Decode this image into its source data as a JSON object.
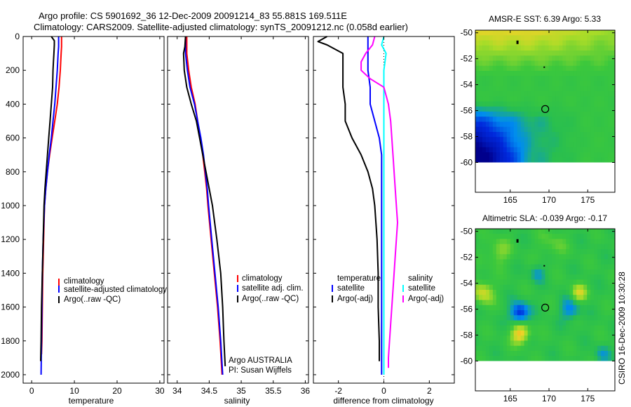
{
  "header": {
    "line1": "Argo profile: CS 5901692_36 12-Dec-2009 20091214_83 55.881S 169.511E",
    "line2": "Climatology: CARS2009. Satellite-adjusted climatology: synTS_20091212.nc (0.058d earlier)"
  },
  "stamp": "CSIRO 16-Dec-2009 10:30:28",
  "float_info": {
    "line1": "Argo AUSTRALIA",
    "line2": "PI: Susan Wijffels"
  },
  "colors": {
    "red": "#ff0000",
    "blue": "#0000ff",
    "black": "#000000",
    "cyan": "#00ffff",
    "magenta": "#ff00ff"
  },
  "chart_data": [
    {
      "id": "temp",
      "type": "line",
      "xlabel": "temperature",
      "xlim": [
        -2,
        31
      ],
      "ylim": [
        2050,
        0
      ],
      "xticks": [
        0,
        10,
        20,
        30
      ],
      "yticks": [
        0,
        200,
        400,
        600,
        800,
        1000,
        1200,
        1400,
        1600,
        1800,
        2000
      ],
      "legend": [
        "climatology",
        "satellite-adjusted climatology",
        "Argo(..raw -QC)"
      ],
      "series": [
        {
          "name": "climatology",
          "color": "#ff0000",
          "points": [
            [
              7.0,
              0
            ],
            [
              7.0,
              60
            ],
            [
              6.9,
              100
            ],
            [
              6.7,
              200
            ],
            [
              6.4,
              300
            ],
            [
              6.0,
              400
            ],
            [
              5.4,
              500
            ],
            [
              4.8,
              600
            ],
            [
              4.2,
              700
            ],
            [
              3.7,
              800
            ],
            [
              3.3,
              900
            ],
            [
              3.0,
              1000
            ],
            [
              2.8,
              1200
            ],
            [
              2.6,
              1400
            ],
            [
              2.5,
              1600
            ],
            [
              2.4,
              1800
            ],
            [
              2.3,
              1880
            ]
          ]
        },
        {
          "name": "satellite-adjusted climatology",
          "color": "#0000ff",
          "points": [
            [
              6.3,
              0
            ],
            [
              6.3,
              60
            ],
            [
              6.2,
              100
            ],
            [
              6.0,
              200
            ],
            [
              5.7,
              300
            ],
            [
              5.4,
              400
            ],
            [
              5.0,
              500
            ],
            [
              4.6,
              600
            ],
            [
              4.1,
              700
            ],
            [
              3.7,
              800
            ],
            [
              3.3,
              900
            ],
            [
              3.0,
              1000
            ],
            [
              2.7,
              1200
            ],
            [
              2.5,
              1400
            ],
            [
              2.4,
              1600
            ],
            [
              2.3,
              1800
            ],
            [
              2.2,
              2000
            ]
          ]
        },
        {
          "name": "Argo(..raw -QC)",
          "color": "#000000",
          "points": [
            [
              4.6,
              0
            ],
            [
              5.3,
              25
            ],
            [
              5.3,
              50
            ],
            [
              5.2,
              100
            ],
            [
              5.1,
              150
            ],
            [
              5.0,
              200
            ],
            [
              4.9,
              300
            ],
            [
              4.6,
              400
            ],
            [
              4.3,
              500
            ],
            [
              4.0,
              600
            ],
            [
              3.7,
              700
            ],
            [
              3.4,
              800
            ],
            [
              3.1,
              900
            ],
            [
              2.9,
              1000
            ],
            [
              2.7,
              1200
            ],
            [
              2.5,
              1400
            ],
            [
              2.3,
              1600
            ],
            [
              2.2,
              1800
            ],
            [
              2.1,
              1920
            ]
          ]
        }
      ]
    },
    {
      "id": "sal",
      "type": "line",
      "xlabel": "salinity",
      "xlim": [
        33.85,
        36.05
      ],
      "ylim": [
        2050,
        0
      ],
      "xticks": [
        34,
        34.5,
        35,
        35.5,
        36
      ],
      "yticks": [
        0,
        200,
        400,
        600,
        800,
        1000,
        1200,
        1400,
        1600,
        1800,
        2000
      ],
      "legend": [
        "climatology",
        "satellite adj. clim.",
        "Argo(..raw -QC)"
      ],
      "series": [
        {
          "name": "climatology",
          "color": "#ff0000",
          "points": [
            [
              34.15,
              0
            ],
            [
              34.15,
              100
            ],
            [
              34.18,
              200
            ],
            [
              34.22,
              300
            ],
            [
              34.28,
              400
            ],
            [
              34.32,
              500
            ],
            [
              34.36,
              600
            ],
            [
              34.4,
              700
            ],
            [
              34.43,
              800
            ],
            [
              34.46,
              900
            ],
            [
              34.48,
              1000
            ],
            [
              34.53,
              1200
            ],
            [
              34.58,
              1400
            ],
            [
              34.63,
              1600
            ],
            [
              34.67,
              1800
            ],
            [
              34.7,
              2000
            ]
          ]
        },
        {
          "name": "satellite adj. clim.",
          "color": "#0000ff",
          "points": [
            [
              34.13,
              0
            ],
            [
              34.13,
              100
            ],
            [
              34.16,
              200
            ],
            [
              34.2,
              300
            ],
            [
              34.27,
              400
            ],
            [
              34.32,
              500
            ],
            [
              34.37,
              600
            ],
            [
              34.41,
              700
            ],
            [
              34.44,
              800
            ],
            [
              34.47,
              900
            ],
            [
              34.49,
              1000
            ],
            [
              34.54,
              1200
            ],
            [
              34.59,
              1400
            ],
            [
              34.64,
              1600
            ],
            [
              34.68,
              1800
            ],
            [
              34.71,
              2000
            ]
          ]
        },
        {
          "name": "Argo(..raw -QC)",
          "color": "#000000",
          "points": [
            [
              34.13,
              0
            ],
            [
              34.12,
              60
            ],
            [
              34.1,
              100
            ],
            [
              34.11,
              200
            ],
            [
              34.15,
              300
            ],
            [
              34.22,
              400
            ],
            [
              34.3,
              500
            ],
            [
              34.35,
              600
            ],
            [
              34.4,
              700
            ],
            [
              34.45,
              800
            ],
            [
              34.5,
              900
            ],
            [
              34.55,
              1000
            ],
            [
              34.62,
              1200
            ],
            [
              34.68,
              1400
            ],
            [
              34.71,
              1600
            ],
            [
              34.73,
              1800
            ],
            [
              34.75,
              1950
            ]
          ]
        }
      ]
    },
    {
      "id": "diff",
      "type": "line",
      "xlabel": "difference from climatology",
      "xlim": [
        -3.1,
        3.1
      ],
      "ylim": [
        2050,
        0
      ],
      "xticks": [
        -2,
        0,
        2
      ],
      "yticks": [
        0,
        200,
        400,
        600,
        800,
        1000,
        1200,
        1400,
        1600,
        1800,
        2000
      ],
      "legend_left_title": "temperature",
      "legend_left": [
        "satellite",
        "Argo(-adj)"
      ],
      "legend_right_title": "salinity",
      "legend_right": [
        "satellite",
        "Argo(-adj)"
      ],
      "series": [
        {
          "name": "temperature satellite",
          "color": "#0000ff",
          "points": [
            [
              -0.7,
              0
            ],
            [
              -0.7,
              60
            ],
            [
              -0.7,
              100
            ],
            [
              -0.7,
              200
            ],
            [
              -0.6,
              300
            ],
            [
              -0.6,
              400
            ],
            [
              -0.4,
              500
            ],
            [
              -0.2,
              600
            ],
            [
              -0.1,
              700
            ],
            [
              -0.1,
              900
            ],
            [
              -0.1,
              1000
            ],
            [
              -0.1,
              1200
            ],
            [
              -0.1,
              1400
            ],
            [
              -0.1,
              1600
            ],
            [
              -0.1,
              1800
            ],
            [
              -0.1,
              2000
            ]
          ]
        },
        {
          "name": "temperature Argo(-adj)",
          "color": "#000000",
          "points": [
            [
              -2.5,
              0
            ],
            [
              -2.9,
              30
            ],
            [
              -2.5,
              50
            ],
            [
              -1.8,
              100
            ],
            [
              -1.8,
              200
            ],
            [
              -1.8,
              300
            ],
            [
              -1.7,
              400
            ],
            [
              -1.7,
              500
            ],
            [
              -1.4,
              600
            ],
            [
              -1.0,
              700
            ],
            [
              -0.7,
              800
            ],
            [
              -0.5,
              900
            ],
            [
              -0.4,
              1000
            ],
            [
              -0.3,
              1200
            ],
            [
              -0.25,
              1400
            ],
            [
              -0.25,
              1600
            ],
            [
              -0.2,
              1800
            ],
            [
              -0.2,
              1920
            ]
          ]
        },
        {
          "name": "salinity satellite",
          "color": "#00ffff",
          "points": [
            [
              0.0,
              0
            ],
            [
              -0.1,
              50
            ],
            [
              0.1,
              100
            ],
            [
              0.0,
              200
            ],
            [
              0.0,
              400
            ],
            [
              0.0,
              600
            ],
            [
              0.0,
              800
            ],
            [
              0.0,
              1000
            ],
            [
              0.0,
              1200
            ],
            [
              0.0,
              1400
            ],
            [
              0.0,
              1600
            ],
            [
              0.0,
              1800
            ],
            [
              0.0,
              2000
            ]
          ]
        },
        {
          "name": "salinity Argo(-adj)",
          "color": "#ff00ff",
          "points": [
            [
              -0.4,
              0
            ],
            [
              -0.5,
              50
            ],
            [
              -0.8,
              100
            ],
            [
              -1.0,
              150
            ],
            [
              -1.0,
              200
            ],
            [
              -0.6,
              250
            ],
            [
              0.0,
              300
            ],
            [
              0.2,
              400
            ],
            [
              0.3,
              500
            ],
            [
              0.4,
              700
            ],
            [
              0.5,
              900
            ],
            [
              0.6,
              1100
            ],
            [
              0.5,
              1300
            ],
            [
              0.4,
              1500
            ],
            [
              0.3,
              1700
            ],
            [
              0.2,
              1900
            ],
            [
              0.2,
              1960
            ]
          ]
        }
      ]
    },
    {
      "id": "sst_map",
      "type": "heatmap",
      "title": "AMSR-E SST: 6.39 Argo: 5.33",
      "xlim": [
        160.5,
        178.5
      ],
      "ylim": [
        -62.3,
        -49.8
      ],
      "data_ylim": [
        -60,
        -49.8
      ],
      "xticks": [
        165,
        170,
        175
      ],
      "yticks": [
        -50,
        -52,
        -54,
        -56,
        -58,
        -60
      ],
      "marker": {
        "lon": 169.511,
        "lat": -55.881
      },
      "color_field": "sst_gradient"
    },
    {
      "id": "sla_map",
      "type": "heatmap",
      "title": "Altimetric SLA: -0.039 Argo: -0.17",
      "xlim": [
        160.5,
        178.5
      ],
      "ylim": [
        -62.3,
        -49.8
      ],
      "data_ylim": [
        -60,
        -49.8
      ],
      "xticks": [
        165,
        170,
        175
      ],
      "yticks": [
        -50,
        -52,
        -54,
        -56,
        -58,
        -60
      ],
      "marker": {
        "lon": 169.511,
        "lat": -55.881
      },
      "color_field": "sla_blobs"
    }
  ]
}
